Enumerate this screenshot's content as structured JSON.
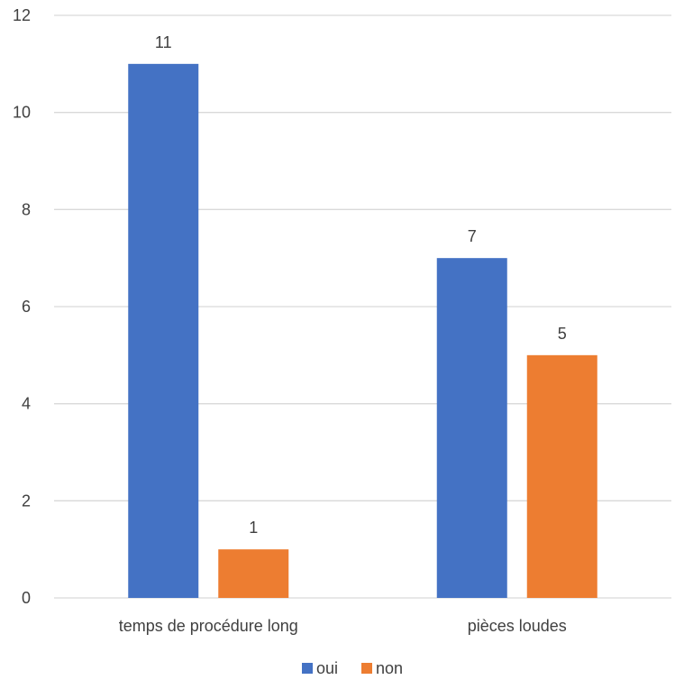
{
  "chart_data": {
    "type": "bar",
    "title": "",
    "xlabel": "",
    "ylabel": "",
    "categories": [
      "temps de procédure long",
      "pièces loudes"
    ],
    "series": [
      {
        "name": "oui",
        "values": [
          11,
          7
        ],
        "color": "#4472C4"
      },
      {
        "name": "non",
        "values": [
          1,
          5
        ],
        "color": "#ED7D31"
      }
    ],
    "ylim": [
      0,
      12
    ],
    "yticks": [
      0,
      2,
      4,
      6,
      8,
      10,
      12
    ],
    "grid": true,
    "data_labels": true,
    "legend_position": "bottom"
  },
  "colors": {
    "gridline": "#D9D9D9",
    "text": "#404040"
  }
}
